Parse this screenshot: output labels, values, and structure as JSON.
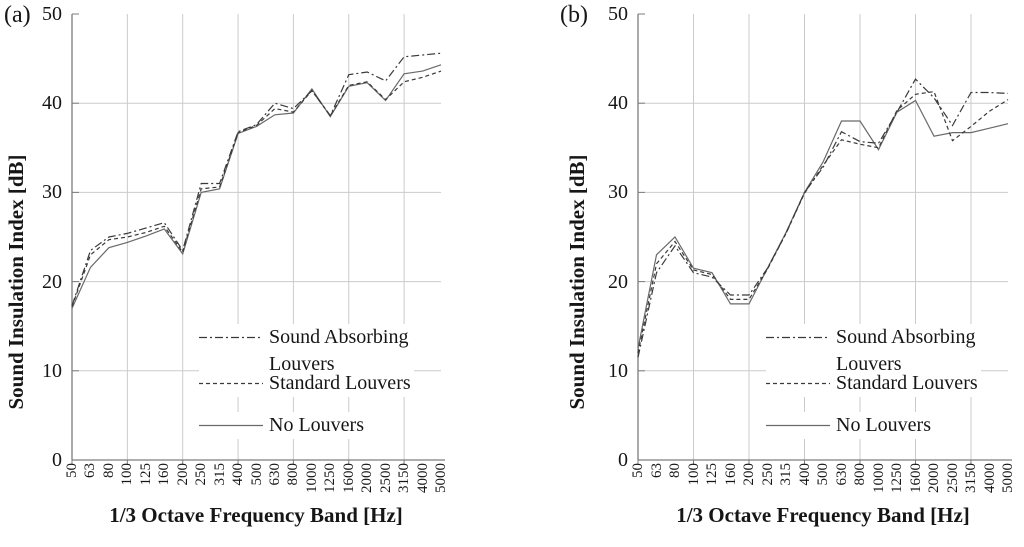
{
  "figure": {
    "panels": [
      {
        "label": "(a)"
      },
      {
        "label": "(b)"
      }
    ]
  },
  "legend": {
    "items": [
      {
        "label_line1": "Sound Absorbing",
        "label_line2": "Louvers",
        "style": "dashdot"
      },
      {
        "label_line1": "Standard Louvers",
        "label_line2": "",
        "style": "dashed"
      },
      {
        "label_line1": "No Louvers",
        "label_line2": "",
        "style": "solid"
      }
    ]
  },
  "chart_data": [
    {
      "type": "line",
      "panel": "(a)",
      "xlabel": "1/3 Octave Frequency Band [Hz]",
      "ylabel": "Sound Insulation Index [dB]",
      "ylim": [
        0,
        50
      ],
      "yticks": [
        0,
        10,
        20,
        30,
        40,
        50
      ],
      "y_tick_labels": [
        "0",
        "10",
        "20",
        "30",
        "40",
        "50"
      ],
      "categories": [
        "50",
        "63",
        "80",
        "100",
        "125",
        "160",
        "200",
        "250",
        "315",
        "400",
        "500",
        "630",
        "800",
        "1000",
        "1250",
        "1600",
        "2000",
        "2500",
        "3150",
        "4000",
        "5000"
      ],
      "grid": true,
      "grid_x_categories": [
        "100",
        "200",
        "400",
        "800",
        "1600",
        "3150"
      ],
      "tick_x_categories": [
        "50",
        "100",
        "200",
        "400",
        "800",
        "1600",
        "3150"
      ],
      "legend_position": "inside lower right",
      "colors": {
        "grid": "#cbcbcb",
        "axis": "#7d7d7d",
        "dashed_lines": "#3a3a3a",
        "solid_line": "#696969"
      },
      "series": [
        {
          "name": "Sound Absorbing Louvers",
          "line_style": "dashdot",
          "values": [
            17.3,
            23.5,
            25.0,
            25.4,
            26.0,
            26.6,
            23.5,
            31.0,
            31.0,
            36.8,
            37.6,
            40.0,
            39.4,
            41.4,
            38.6,
            43.2,
            43.5,
            42.5,
            45.2,
            45.4,
            45.6
          ]
        },
        {
          "name": "Standard Louvers",
          "line_style": "dashed",
          "values": [
            17.2,
            23.0,
            24.7,
            25.0,
            25.5,
            26.2,
            23.3,
            30.4,
            30.6,
            36.7,
            37.5,
            39.4,
            39.0,
            41.4,
            38.6,
            42.0,
            42.4,
            40.4,
            42.4,
            42.9,
            43.6
          ]
        },
        {
          "name": "No Louvers",
          "line_style": "solid",
          "values": [
            17.0,
            21.6,
            23.8,
            24.4,
            25.1,
            25.9,
            23.1,
            30.0,
            30.4,
            36.6,
            37.4,
            38.7,
            38.9,
            41.6,
            38.5,
            41.9,
            42.3,
            40.3,
            43.3,
            43.6,
            44.3
          ]
        }
      ]
    },
    {
      "type": "line",
      "panel": "(b)",
      "xlabel": "1/3 Octave Frequency Band [Hz]",
      "ylabel": "Sound Insulation Index [dB]",
      "ylim": [
        0,
        50
      ],
      "yticks": [
        0,
        10,
        20,
        30,
        40,
        50
      ],
      "y_tick_labels": [
        "0",
        "10",
        "20",
        "30",
        "40",
        "50"
      ],
      "categories": [
        "50",
        "63",
        "80",
        "100",
        "125",
        "160",
        "200",
        "250",
        "315",
        "400",
        "500",
        "630",
        "800",
        "1000",
        "1250",
        "1600",
        "2000",
        "2500",
        "3150",
        "4000",
        "5000"
      ],
      "grid": true,
      "grid_x_categories": [
        "100",
        "200",
        "400",
        "800",
        "1600",
        "3150"
      ],
      "tick_x_categories": [
        "50",
        "100",
        "200",
        "400",
        "800",
        "1600",
        "3150"
      ],
      "legend_position": "inside lower right",
      "colors": {
        "grid": "#cbcbcb",
        "axis": "#7d7d7d",
        "dashed_lines": "#3a3a3a",
        "solid_line": "#696969"
      },
      "series": [
        {
          "name": "Sound Absorbing Louvers",
          "line_style": "dashdot",
          "values": [
            11.5,
            21.0,
            24.0,
            21.0,
            20.5,
            18.5,
            18.5,
            21.5,
            25.4,
            30.0,
            32.8,
            36.8,
            35.7,
            35.5,
            39.0,
            42.7,
            40.6,
            37.5,
            41.2,
            41.2,
            41.1
          ]
        },
        {
          "name": "Standard Louvers",
          "line_style": "dashed",
          "values": [
            12.0,
            22.0,
            24.5,
            21.3,
            20.8,
            18.0,
            18.0,
            21.4,
            25.4,
            29.9,
            33.0,
            35.9,
            35.4,
            35.0,
            39.2,
            41.0,
            41.3,
            35.8,
            37.4,
            39.1,
            40.4
          ]
        },
        {
          "name": "No Louvers",
          "line_style": "solid",
          "values": [
            12.5,
            23.0,
            25.0,
            21.5,
            21.0,
            17.5,
            17.5,
            21.5,
            25.5,
            30.0,
            33.4,
            38.0,
            38.0,
            34.8,
            39.0,
            40.3,
            36.3,
            36.7,
            36.7,
            37.2,
            37.7
          ]
        }
      ]
    }
  ]
}
